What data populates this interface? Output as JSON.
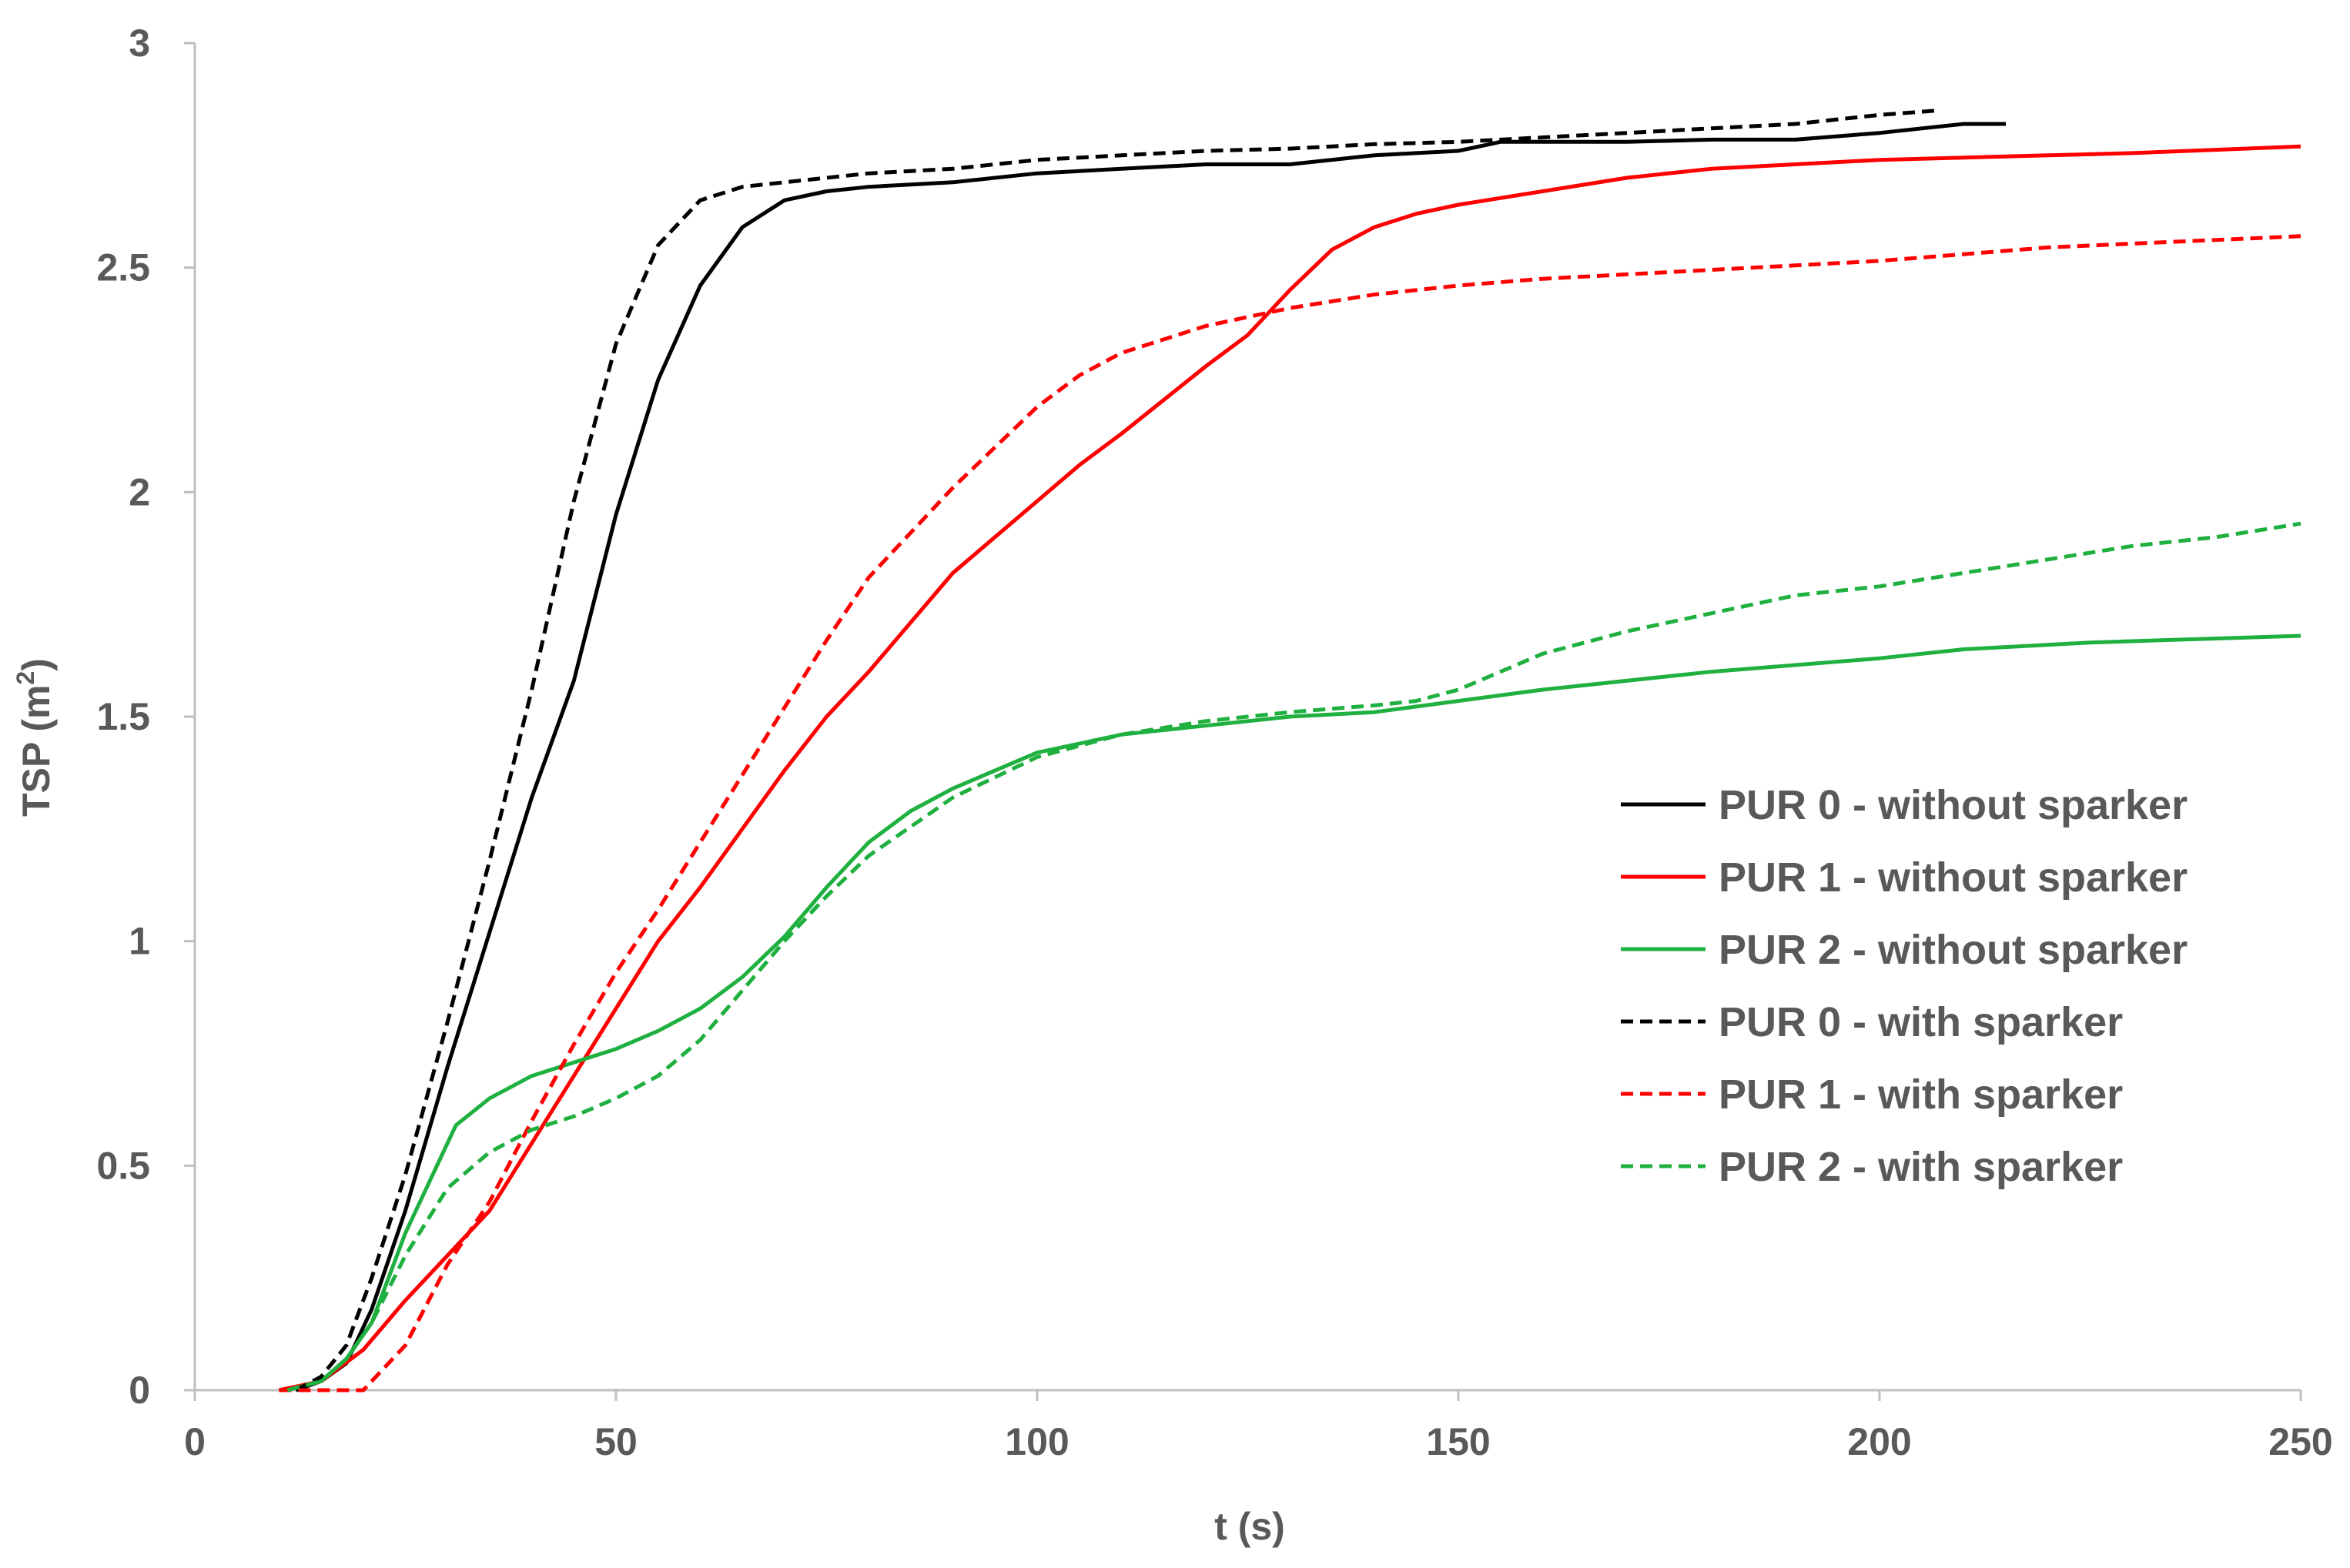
{
  "chart_data": {
    "type": "line",
    "title": "",
    "xlabel": "t (s)",
    "ylabel_main": "TSP (m",
    "ylabel_sup": "2",
    "ylabel_close": ")",
    "xlim": [
      0,
      250
    ],
    "ylim": [
      0,
      3
    ],
    "xticks": [
      0,
      50,
      100,
      150,
      200,
      250
    ],
    "xtick_labels": [
      "0",
      "50",
      "100",
      "150",
      "200",
      "250"
    ],
    "yticks": [
      0,
      0.5,
      1,
      1.5,
      2,
      2.5,
      3
    ],
    "ytick_labels": [
      "0",
      "0.5",
      "1",
      "1.5",
      "2",
      "2.5",
      "3"
    ],
    "grid": false,
    "legend_position": "center-right",
    "series": [
      {
        "name": "PUR 0 - without sparker",
        "color": "#000000",
        "dash": "solid",
        "x": [
          12,
          15,
          18,
          21,
          25,
          30,
          35,
          40,
          45,
          50,
          55,
          60,
          65,
          70,
          75,
          80,
          90,
          100,
          110,
          120,
          130,
          140,
          145,
          150,
          155,
          160,
          170,
          180,
          190,
          200,
          210,
          215
        ],
        "y": [
          0,
          0.02,
          0.06,
          0.18,
          0.4,
          0.72,
          1.02,
          1.32,
          1.58,
          1.95,
          2.25,
          2.46,
          2.59,
          2.65,
          2.67,
          2.68,
          2.69,
          2.71,
          2.72,
          2.73,
          2.73,
          2.75,
          2.755,
          2.76,
          2.78,
          2.78,
          2.78,
          2.785,
          2.785,
          2.8,
          2.82,
          2.82
        ]
      },
      {
        "name": "PUR 1 - without sparker",
        "color": "#ff0000",
        "dash": "solid",
        "x": [
          10,
          15,
          20,
          25,
          30,
          35,
          40,
          45,
          50,
          55,
          60,
          65,
          70,
          75,
          80,
          90,
          100,
          105,
          110,
          120,
          125,
          130,
          135,
          140,
          145,
          150,
          160,
          170,
          180,
          200,
          210,
          220,
          230,
          250
        ],
        "y": [
          0,
          0.02,
          0.09,
          0.2,
          0.3,
          0.4,
          0.55,
          0.7,
          0.85,
          1.0,
          1.12,
          1.25,
          1.38,
          1.5,
          1.6,
          1.82,
          1.98,
          2.06,
          2.13,
          2.28,
          2.35,
          2.45,
          2.54,
          2.59,
          2.62,
          2.64,
          2.67,
          2.7,
          2.72,
          2.74,
          2.745,
          2.75,
          2.755,
          2.77
        ]
      },
      {
        "name": "PUR 2 - without sparker",
        "color": "#1fb040",
        "dash": "solid",
        "x": [
          11,
          15,
          18,
          21,
          25,
          31,
          35,
          40,
          45,
          50,
          55,
          60,
          65,
          70,
          75,
          80,
          85,
          90,
          100,
          110,
          120,
          130,
          140,
          150,
          160,
          180,
          200,
          210,
          225,
          250
        ],
        "y": [
          0,
          0.02,
          0.07,
          0.15,
          0.35,
          0.59,
          0.65,
          0.7,
          0.73,
          0.76,
          0.8,
          0.85,
          0.92,
          1.01,
          1.12,
          1.22,
          1.29,
          1.34,
          1.42,
          1.46,
          1.48,
          1.5,
          1.51,
          1.535,
          1.56,
          1.6,
          1.63,
          1.65,
          1.665,
          1.68
        ]
      },
      {
        "name": "PUR 0 - with sparker",
        "color": "#000000",
        "dash": "dashed",
        "x": [
          12,
          15,
          18,
          21,
          25,
          30,
          35,
          40,
          45,
          50,
          55,
          60,
          65,
          70,
          80,
          90,
          100,
          110,
          120,
          130,
          140,
          150,
          160,
          170,
          180,
          190,
          200,
          207
        ],
        "y": [
          0,
          0.03,
          0.1,
          0.25,
          0.48,
          0.82,
          1.18,
          1.56,
          1.98,
          2.33,
          2.55,
          2.65,
          2.68,
          2.69,
          2.71,
          2.72,
          2.74,
          2.75,
          2.76,
          2.765,
          2.775,
          2.78,
          2.79,
          2.8,
          2.81,
          2.82,
          2.84,
          2.85
        ]
      },
      {
        "name": "PUR 1 - with sparker",
        "color": "#ff0000",
        "dash": "dashed",
        "x": [
          10,
          20,
          25,
          30,
          35,
          40,
          45,
          50,
          55,
          60,
          65,
          70,
          75,
          80,
          90,
          100,
          105,
          110,
          120,
          130,
          140,
          150,
          160,
          170,
          180,
          190,
          200,
          210,
          220,
          250
        ],
        "y": [
          0,
          0.0,
          0.1,
          0.28,
          0.42,
          0.6,
          0.77,
          0.93,
          1.07,
          1.22,
          1.37,
          1.52,
          1.67,
          1.81,
          2.01,
          2.19,
          2.26,
          2.31,
          2.37,
          2.41,
          2.44,
          2.46,
          2.475,
          2.485,
          2.495,
          2.505,
          2.515,
          2.53,
          2.545,
          2.57
        ]
      },
      {
        "name": "PUR 2 - with sparker",
        "color": "#1fb040",
        "dash": "dashed",
        "x": [
          11,
          15,
          18,
          21,
          25,
          30,
          35,
          40,
          45,
          50,
          55,
          60,
          65,
          70,
          75,
          80,
          90,
          100,
          110,
          120,
          130,
          140,
          145,
          150,
          160,
          170,
          180,
          190,
          200,
          210,
          220,
          230,
          240,
          250
        ],
        "y": [
          0,
          0.02,
          0.07,
          0.15,
          0.3,
          0.45,
          0.53,
          0.58,
          0.61,
          0.65,
          0.7,
          0.78,
          0.89,
          1.0,
          1.1,
          1.19,
          1.32,
          1.41,
          1.46,
          1.49,
          1.51,
          1.525,
          1.535,
          1.56,
          1.64,
          1.69,
          1.73,
          1.77,
          1.79,
          1.82,
          1.85,
          1.88,
          1.9,
          1.93
        ]
      }
    ]
  }
}
